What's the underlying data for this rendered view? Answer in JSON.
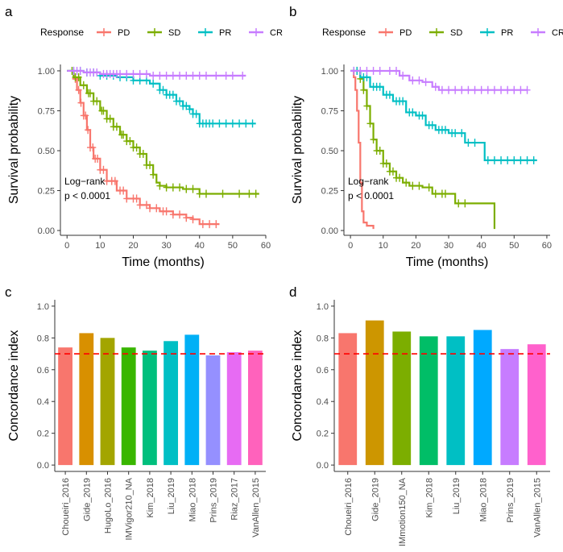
{
  "colors": {
    "PD": "#F8766D",
    "SD": "#7CAE00",
    "PR": "#00BFC4",
    "CR": "#C77CFF",
    "ref_line": "#FF0000",
    "axis": "#333333"
  },
  "chart_data": [
    {
      "panel": "a",
      "type": "line",
      "subtype": "kaplan-meier",
      "legend_title": "Response",
      "legend_placement": "top",
      "xlabel": "Time (months)",
      "ylabel": "Survival probability",
      "xlim": [
        -2,
        60
      ],
      "ylim": [
        -0.03,
        1.04
      ],
      "x_ticks": [
        0,
        10,
        20,
        30,
        40,
        50,
        60
      ],
      "y_ticks": [
        0.0,
        0.25,
        0.5,
        0.75,
        1.0
      ],
      "x_tick_labels": [
        "0",
        "10",
        "20",
        "30",
        "40",
        "50",
        "60"
      ],
      "y_tick_labels": [
        "0.00",
        "0.25",
        "0.50",
        "0.75",
        "1.00"
      ],
      "annotation": [
        "Log−rank",
        "p < 0.0001"
      ],
      "series": [
        {
          "name": "PD",
          "points": [
            [
              0,
              1.0
            ],
            [
              2,
              0.95
            ],
            [
              3,
              0.88
            ],
            [
              4,
              0.8
            ],
            [
              5,
              0.72
            ],
            [
              6,
              0.63
            ],
            [
              7,
              0.52
            ],
            [
              8,
              0.45
            ],
            [
              10,
              0.38
            ],
            [
              12,
              0.31
            ],
            [
              15,
              0.25
            ],
            [
              18,
              0.2
            ],
            [
              22,
              0.16
            ],
            [
              25,
              0.14
            ],
            [
              28,
              0.12
            ],
            [
              32,
              0.1
            ],
            [
              36,
              0.08
            ],
            [
              38,
              0.07
            ],
            [
              40,
              0.04
            ],
            [
              46,
              0.04
            ]
          ],
          "censor": [
            2.5,
            3.5,
            4.2,
            5,
            5.6,
            6.3,
            7,
            7.8,
            8.5,
            9.2,
            10,
            11,
            12,
            13.5,
            14.5,
            16,
            17,
            18,
            20,
            21,
            22,
            24,
            25,
            27,
            29,
            30,
            32,
            34,
            36,
            38,
            41,
            43,
            45
          ]
        },
        {
          "name": "SD",
          "points": [
            [
              0,
              1.0
            ],
            [
              2,
              0.96
            ],
            [
              4,
              0.91
            ],
            [
              6,
              0.86
            ],
            [
              8,
              0.81
            ],
            [
              10,
              0.75
            ],
            [
              12,
              0.7
            ],
            [
              14,
              0.65
            ],
            [
              16,
              0.6
            ],
            [
              18,
              0.56
            ],
            [
              20,
              0.52
            ],
            [
              22,
              0.48
            ],
            [
              24,
              0.41
            ],
            [
              26,
              0.35
            ],
            [
              27,
              0.3
            ],
            [
              28,
              0.28
            ],
            [
              30,
              0.27
            ],
            [
              35,
              0.26
            ],
            [
              40,
              0.23
            ],
            [
              58,
              0.23
            ]
          ],
          "censor": [
            1.5,
            2.5,
            3.5,
            5,
            6.5,
            7,
            8,
            9,
            10.5,
            11,
            12,
            13,
            14,
            15,
            16.5,
            17,
            18,
            19,
            20,
            21,
            22,
            23,
            24,
            25,
            26,
            28,
            30,
            32,
            34,
            36,
            38,
            40,
            42,
            47,
            52,
            55,
            57
          ]
        },
        {
          "name": "PR",
          "points": [
            [
              0,
              1.0
            ],
            [
              5,
              0.99
            ],
            [
              10,
              0.97
            ],
            [
              15,
              0.96
            ],
            [
              20,
              0.94
            ],
            [
              25,
              0.92
            ],
            [
              28,
              0.88
            ],
            [
              30,
              0.85
            ],
            [
              33,
              0.81
            ],
            [
              35,
              0.78
            ],
            [
              37,
              0.76
            ],
            [
              38,
              0.73
            ],
            [
              40,
              0.67
            ],
            [
              57,
              0.67
            ]
          ],
          "censor": [
            2,
            4,
            6,
            8,
            10,
            12,
            14,
            16,
            18,
            20,
            22,
            24,
            26,
            28,
            29,
            30,
            31,
            32,
            33,
            34,
            35,
            36,
            37,
            38,
            39,
            40,
            41,
            42,
            43,
            44,
            46,
            48,
            50,
            52,
            54,
            56
          ]
        },
        {
          "name": "CR",
          "points": [
            [
              0,
              1.0
            ],
            [
              5,
              0.99
            ],
            [
              10,
              0.98
            ],
            [
              20,
              0.98
            ],
            [
              25,
              0.97
            ],
            [
              54,
              0.97
            ]
          ],
          "censor": [
            2,
            3,
            4,
            6,
            7,
            8,
            9,
            11,
            12,
            13,
            14,
            15,
            16,
            18,
            20,
            22,
            24,
            26,
            28,
            30,
            32,
            34,
            36,
            38,
            40,
            42,
            45,
            48,
            50,
            53
          ]
        }
      ]
    },
    {
      "panel": "b",
      "type": "line",
      "subtype": "kaplan-meier",
      "legend_title": "Response",
      "legend_placement": "top",
      "xlabel": "Time (months)",
      "ylabel": "Survival probability",
      "xlim": [
        -2,
        61
      ],
      "ylim": [
        -0.03,
        1.04
      ],
      "x_ticks": [
        0,
        10,
        20,
        30,
        40,
        50,
        60
      ],
      "y_ticks": [
        0.0,
        0.25,
        0.5,
        0.75,
        1.0
      ],
      "x_tick_labels": [
        "0",
        "10",
        "20",
        "30",
        "40",
        "50",
        "60"
      ],
      "y_tick_labels": [
        "0.00",
        "0.25",
        "0.50",
        "0.75",
        "1.00"
      ],
      "annotation": [
        "Log−rank",
        "p < 0.0001"
      ],
      "series": [
        {
          "name": "PD",
          "points": [
            [
              0,
              1.0
            ],
            [
              1,
              0.96
            ],
            [
              1.5,
              0.88
            ],
            [
              2,
              0.75
            ],
            [
              2.5,
              0.55
            ],
            [
              3,
              0.3
            ],
            [
              3.5,
              0.12
            ],
            [
              4,
              0.05
            ],
            [
              5,
              0.03
            ],
            [
              7,
              0.01
            ]
          ],
          "censor": []
        },
        {
          "name": "SD",
          "points": [
            [
              0,
              1.0
            ],
            [
              3,
              0.95
            ],
            [
              4,
              0.88
            ],
            [
              5,
              0.78
            ],
            [
              6,
              0.67
            ],
            [
              7,
              0.57
            ],
            [
              8,
              0.5
            ],
            [
              10,
              0.42
            ],
            [
              12,
              0.37
            ],
            [
              14,
              0.33
            ],
            [
              16,
              0.3
            ],
            [
              18,
              0.28
            ],
            [
              22,
              0.27
            ],
            [
              25,
              0.23
            ],
            [
              30,
              0.23
            ],
            [
              32,
              0.17
            ],
            [
              43,
              0.17
            ],
            [
              44,
              0.01
            ]
          ],
          "censor": [
            2,
            3,
            4,
            5,
            6,
            7,
            8,
            9,
            10,
            11,
            12,
            13,
            14,
            15,
            17,
            19,
            21,
            24,
            26,
            28,
            29,
            33,
            35
          ]
        },
        {
          "name": "PR",
          "points": [
            [
              0,
              1.0
            ],
            [
              3,
              0.96
            ],
            [
              6,
              0.9
            ],
            [
              10,
              0.85
            ],
            [
              13,
              0.81
            ],
            [
              17,
              0.74
            ],
            [
              20,
              0.72
            ],
            [
              23,
              0.66
            ],
            [
              26,
              0.63
            ],
            [
              30,
              0.61
            ],
            [
              33,
              0.61
            ],
            [
              35,
              0.55
            ],
            [
              40,
              0.55
            ],
            [
              41,
              0.44
            ],
            [
              57,
              0.44
            ]
          ],
          "censor": [
            1,
            2,
            4,
            5,
            7,
            8,
            9,
            11,
            12,
            14,
            15,
            16,
            18,
            19,
            21,
            22,
            24,
            25,
            27,
            28,
            29,
            31,
            32,
            34,
            36,
            38,
            42,
            44,
            46,
            48,
            50,
            52,
            54,
            56
          ]
        },
        {
          "name": "CR",
          "points": [
            [
              0,
              1.0
            ],
            [
              10,
              1.0
            ],
            [
              15,
              0.97
            ],
            [
              18,
              0.94
            ],
            [
              22,
              0.93
            ],
            [
              25,
              0.9
            ],
            [
              27,
              0.88
            ],
            [
              54,
              0.88
            ]
          ],
          "censor": [
            1,
            3,
            5,
            7,
            9,
            12,
            14,
            16,
            19,
            21,
            23,
            26,
            28,
            30,
            32,
            34,
            36,
            38,
            40,
            42,
            44,
            46,
            48,
            50,
            52,
            54
          ]
        }
      ]
    },
    {
      "panel": "c",
      "type": "bar",
      "ylabel": "Concordance index",
      "xlabel": "",
      "ylim": [
        -0.04,
        1.04
      ],
      "y_ticks": [
        0.0,
        0.2,
        0.4,
        0.6,
        0.8,
        1.0
      ],
      "y_tick_labels": [
        "0.0",
        "0.2",
        "0.4",
        "0.6",
        "0.8",
        "1.0"
      ],
      "reference_line": 0.7,
      "categories": [
        "Choueiri_2016",
        "Gide_2019",
        "HugoLo_2016",
        "IMVigor210_NA",
        "Kim_2018",
        "Liu_2019",
        "Miao_2018",
        "Prins_2019",
        "Riaz_2017",
        "VanAllen_2015"
      ],
      "values": [
        0.74,
        0.83,
        0.8,
        0.74,
        0.72,
        0.78,
        0.82,
        0.69,
        0.71,
        0.72
      ],
      "bar_colors": [
        "#F8766D",
        "#D89000",
        "#A3A500",
        "#39B600",
        "#00BF7D",
        "#00BFC4",
        "#00B0F6",
        "#9590FF",
        "#E76BF3",
        "#FF62BC"
      ]
    },
    {
      "panel": "d",
      "type": "bar",
      "ylabel": "Concordance index",
      "xlabel": "",
      "ylim": [
        -0.04,
        1.04
      ],
      "y_ticks": [
        0.0,
        0.2,
        0.4,
        0.6,
        0.8,
        1.0
      ],
      "y_tick_labels": [
        "0.0",
        "0.2",
        "0.4",
        "0.6",
        "0.8",
        "1.0"
      ],
      "reference_line": 0.7,
      "categories": [
        "Choueiri_2016",
        "Gide_2019",
        "IMmotion150_NA",
        "Kim_2018",
        "Liu_2019",
        "Miao_2018",
        "Prins_2019",
        "VanAllen_2015"
      ],
      "values": [
        0.83,
        0.91,
        0.84,
        0.81,
        0.81,
        0.85,
        0.73,
        0.76
      ],
      "bar_colors": [
        "#F8766D",
        "#CD9600",
        "#7CAE00",
        "#00BE67",
        "#00BFC4",
        "#00A9FF",
        "#C77CFF",
        "#FF61CC"
      ]
    }
  ]
}
